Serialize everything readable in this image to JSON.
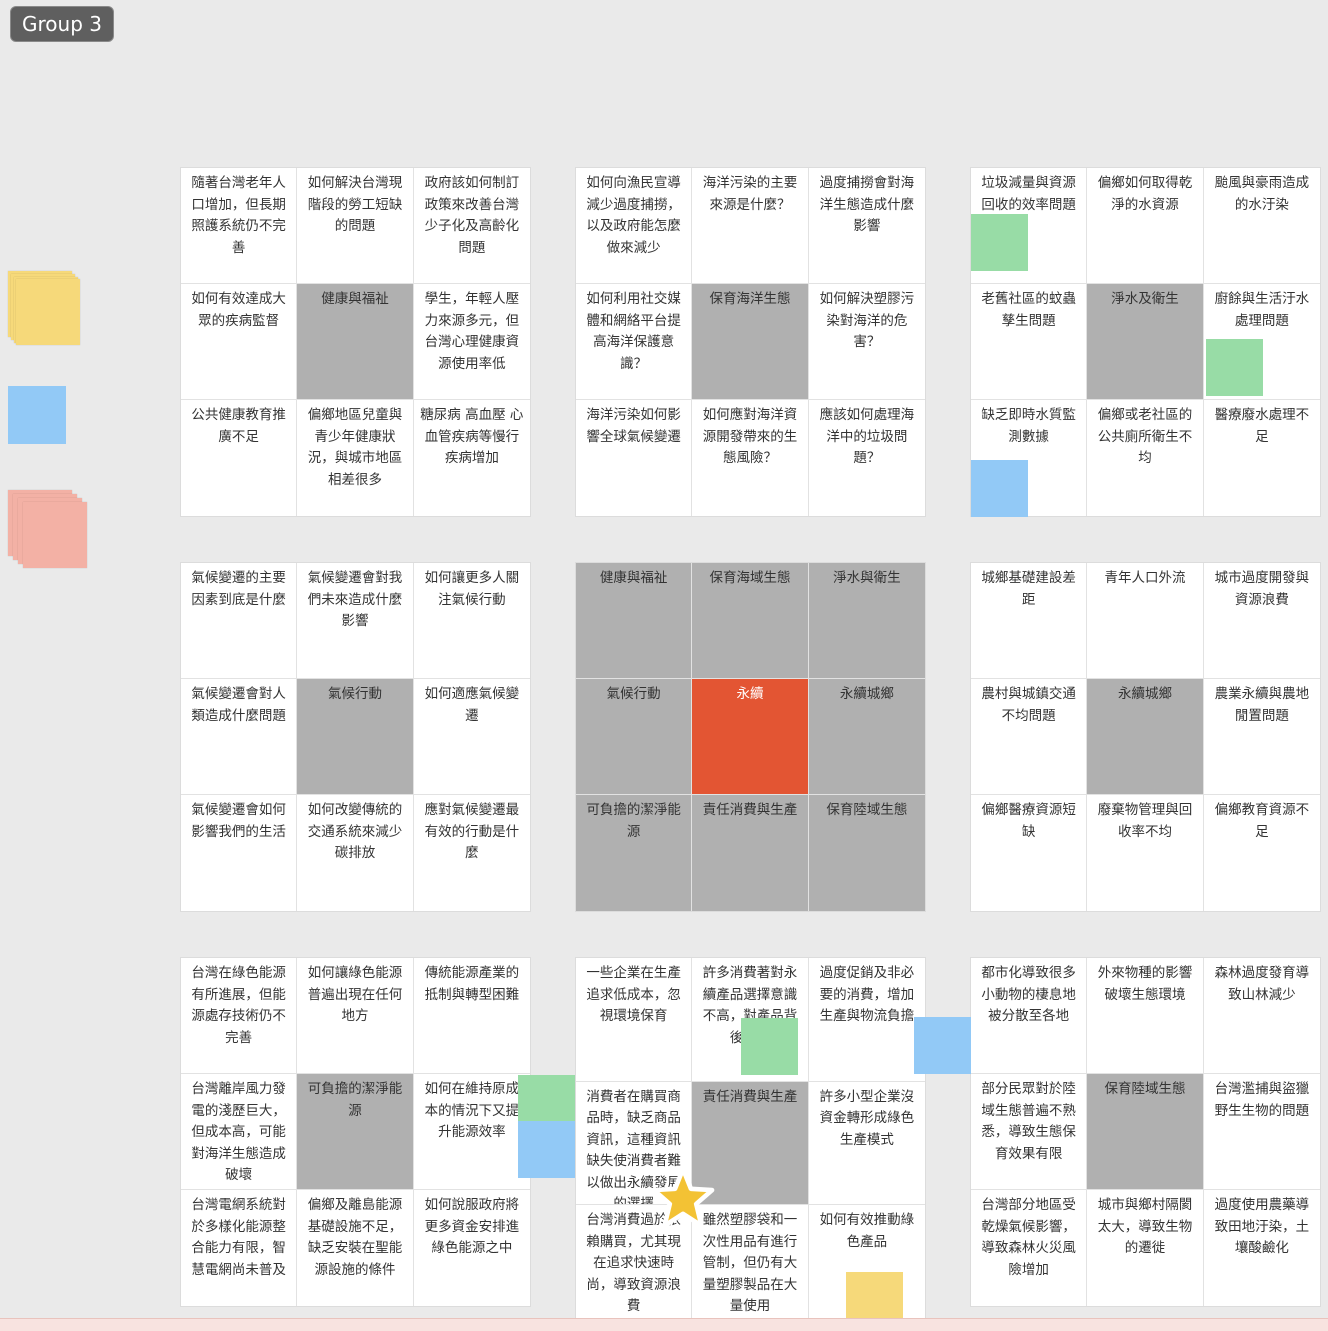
{
  "group": {
    "label": "Group 3"
  },
  "colors": {
    "gray": "#b0b0b0",
    "center": "#e35533",
    "green": "#98dca6",
    "blue": "#92c9f6",
    "yellow": "#f6d97a",
    "pink": "#f3b1a5"
  },
  "grids": [
    {
      "cells": [
        "隨著台灣老年人口增加，但長期照護系統仍不完善",
        "如何解決台灣現階段的勞工短缺的問題",
        "政府該如何制訂政策來改善台灣少子化及高齡化問題",
        "如何有效達成大眾的疾病監督",
        "健康與福祉",
        "學生，年輕人壓力來源多元，但台灣心理健康資源使用率低",
        "公共健康教育推廣不足",
        "偏鄉地區兒童與青少年健康狀況，與城市地區相差很多",
        "糖尿病 高血壓 心血管疾病等慢行疾病增加"
      ]
    },
    {
      "cells": [
        "如何向漁民宣導減少過度捕撈，以及政府能怎麼做來減少",
        "海洋污染的主要來源是什麼？",
        "過度捕撈會對海洋生態造成什麼影響",
        "如何利用社交媒體和網絡平台提高海洋保護意識？",
        "保育海洋生態",
        "如何解決塑膠污染對海洋的危害？",
        "海洋污染如何影響全球氣候變遷",
        "如何應對海洋資源開發帶來的生態風險？",
        "應該如何處理海洋中的垃圾問題？"
      ]
    },
    {
      "cells": [
        "垃圾減量與資源回收的效率問題",
        "偏鄉如何取得乾淨的水資源",
        "颱風與豪雨造成的水汙染",
        "老舊社區的蚊蟲孳生問題",
        "淨水及衛生",
        "廚餘與生活汙水處理問題",
        "缺乏即時水質監測數據",
        "偏鄉或老社區的公共廁所衛生不均",
        "醫療廢水處理不足"
      ]
    },
    {
      "cells": [
        "氣候變遷的主要因素到底是什麼",
        "氣候變遷會對我們未來造成什麼影響",
        "如何讓更多人關注氣候行動",
        "氣候變遷會對人類造成什麼問題",
        "氣候行動",
        "如何適應氣候變遷",
        "氣候變遷會如何影響我們的生活",
        "如何改變傳統的交通系統來減少碳排放",
        "應對氣候變遷最有效的行動是什麼"
      ]
    },
    {
      "cells": [
        "健康與福祉",
        "保育海域生態",
        "淨水與衛生",
        "氣候行動",
        "永續",
        "永續城鄉",
        "可負擔的潔淨能源",
        "責任消費與生產",
        "保育陸域生態"
      ]
    },
    {
      "cells": [
        "城鄉基礎建設差距",
        "青年人口外流",
        "城市過度開發與資源浪費",
        "農村與城鎮交通不均問題",
        "永續城鄉",
        "農業永續與農地閒置問題",
        "偏鄉醫療資源短缺",
        "廢棄物管理與回收率不均",
        "偏鄉教育資源不足"
      ]
    },
    {
      "cells": [
        "台灣在綠色能源有所進展，但能源處存技術仍不完善",
        "如何讓綠色能源普遍出現在任何地方",
        "傳統能源產業的抵制與轉型困難",
        "台灣離岸風力發電的淺歷巨大，但成本高，可能對海洋生態造成破壞",
        "可負擔的潔淨能源",
        "如何在維持原成本的情況下又提升能源效率",
        "台灣電網系統對於多樣化能源整合能力有限，智慧電網尚未普及",
        "偏鄉及離島能源基礎設施不足，缺乏安裝在聖能源設施的條件",
        "如何說服政府將更多資金安排進綠色能源之中"
      ]
    },
    {
      "cells": [
        "一些企業在生產追求低成本，忽視環境保育",
        "許多消費著對永續產品選擇意識不高，對產品背後環境",
        "過度促銷及非必要的消費，增加生產與物流負擔",
        "消費者在購買商品時，缺乏商品資訊，這種資訊缺失使消費者難以做出永續發展的選擇",
        "責任消費與生產",
        "許多小型企業沒資金轉形成綠色生產模式",
        "台灣消費過於依賴購買，尤其現在追求快速時尚，導致資源浪費",
        "雖然塑膠袋和一次性用品有進行管制，但仍有大量塑膠製品在大量使用",
        "如何有效推動綠色產品"
      ]
    },
    {
      "cells": [
        "都市化導致很多小動物的棲息地被分散至各地",
        "外來物種的影響破壞生態環境",
        "森林過度發育導致山林減少",
        "部分民眾對於陸域生態普遍不熟悉，導致生態保育效果有限",
        "保育陸域生態",
        "台灣濫捕與盜獵野生生物的問題",
        "台灣部分地區受乾燥氣候影響，導致森林火災風險增加",
        "城市與鄉村隔閡太大，導致生物的遷徙",
        "過度使用農藥導致田地汙染，土壤酸鹼化"
      ]
    }
  ]
}
